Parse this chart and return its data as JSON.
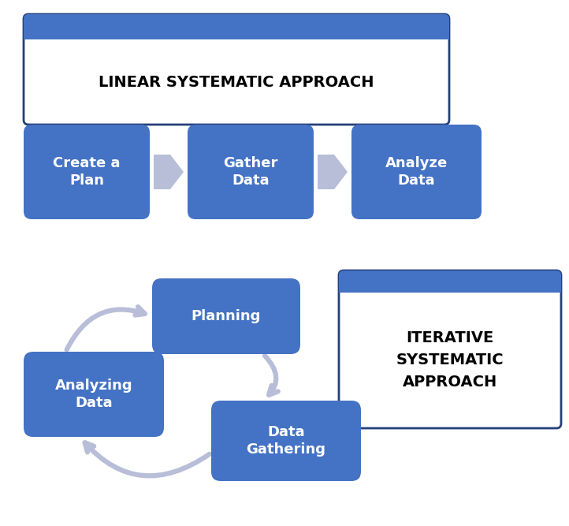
{
  "bg_color": "#ffffff",
  "box_color": "#4472C4",
  "header_blue": "#4472C4",
  "border_color": "#243F7A",
  "arrow_color": "#B8BDD8",
  "text_white": "#ffffff",
  "text_black": "#000000",
  "linear_title": "LINEAR SYSTEMATIC APPROACH",
  "linear_boxes": [
    "Create a\nPlan",
    "Gather\nData",
    "Analyze\nData"
  ],
  "iterative_title": "ITERATIVE\nSYSTEMATIC\nAPPROACH",
  "iterative_boxes": [
    "Planning",
    "Data\nGathering",
    "Analyzing\nData"
  ],
  "figsize": [
    7.22,
    6.67
  ],
  "dpi": 100
}
